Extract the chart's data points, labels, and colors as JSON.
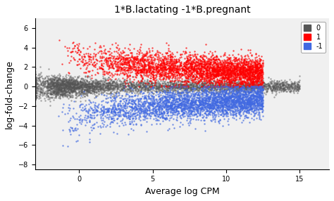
{
  "title": "1*B.lactating -1*B.pregnant",
  "xlabel": "Average log CPM",
  "ylabel": "log-fold-change",
  "xlim": [
    -3,
    17
  ],
  "ylim": [
    -8.5,
    7
  ],
  "yticks": [
    -8,
    -6,
    -4,
    -2,
    0,
    2,
    4,
    6
  ],
  "xticks": [
    0,
    5,
    10,
    15
  ],
  "legend_labels": [
    "0",
    "1",
    "-1"
  ],
  "legend_colors": [
    "#555555",
    "red",
    "#4169e1"
  ],
  "bg_color": "#f0f0f0",
  "n_neutral": 4000,
  "n_up": 3500,
  "n_down": 3500,
  "seed": 42,
  "point_size": 3,
  "alpha": 0.7
}
